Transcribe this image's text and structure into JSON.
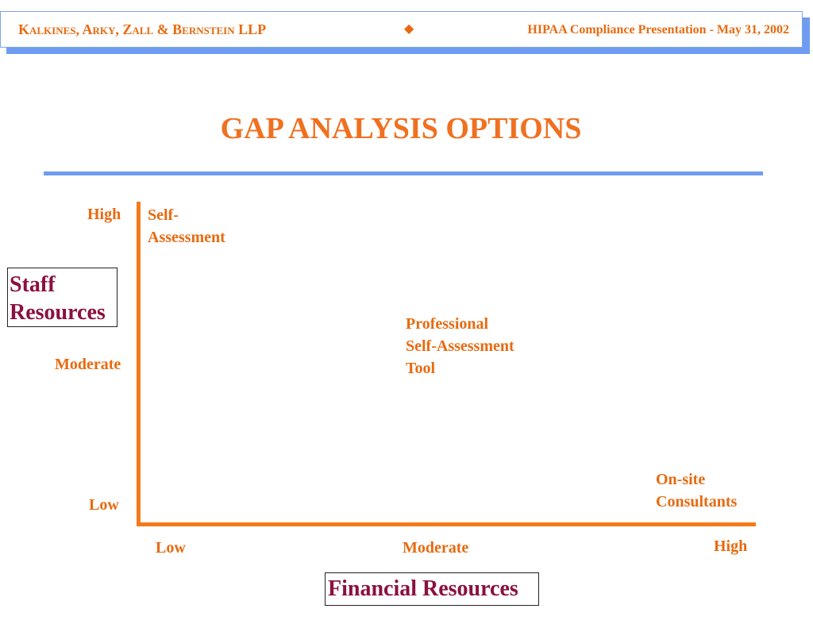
{
  "header": {
    "firm_name": "Kalkines, Arky, Zall & Bernstein LLP",
    "separator_icon": "diamond-icon",
    "presentation_title": "HIPAA Compliance Presentation - May 31, 2002"
  },
  "slide": {
    "title": "GAP ANALYSIS OPTIONS"
  },
  "y_axis": {
    "label_line1": "Staff",
    "label_line2": "Resources",
    "tick_high": "High",
    "tick_moderate": "Moderate",
    "tick_low": "Low"
  },
  "x_axis": {
    "label": "Financial Resources",
    "tick_low": "Low",
    "tick_moderate": "Moderate",
    "tick_high": "High"
  },
  "options": [
    {
      "line1": "Self-",
      "line2": "Assessment"
    },
    {
      "line1": "Professional",
      "line2": "Self-Assessment",
      "line3": "Tool"
    },
    {
      "line1": "On-site",
      "line2": "Consultants"
    }
  ],
  "colors": {
    "accent_orange": "#f57a1a",
    "rule_blue": "#6f9cf0",
    "axis_label": "#8b1040"
  }
}
